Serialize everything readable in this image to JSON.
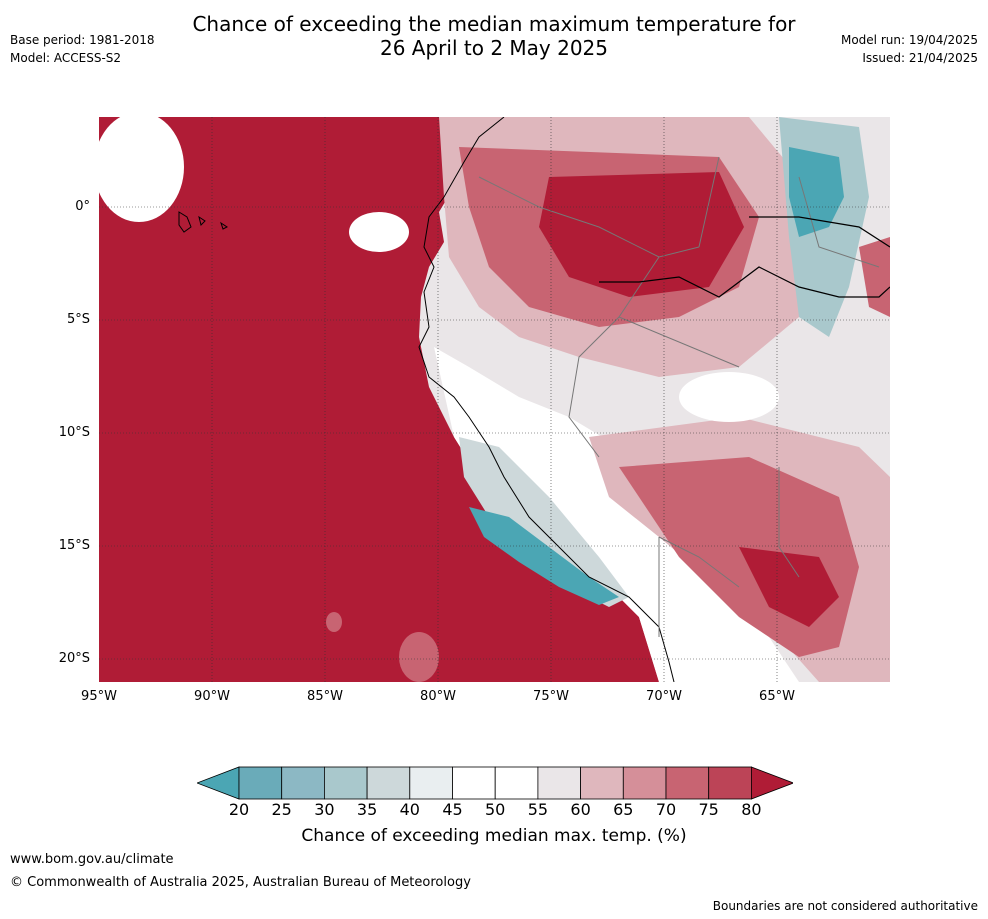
{
  "header": {
    "base_period": "Base period: 1981-2018",
    "model": "Model: ACCESS-S2",
    "title_line1": "Chance of exceeding the median maximum temperature for",
    "title_line2": "26 April to 2 May 2025",
    "model_run": "Model run: 19/04/2025",
    "issued": "Issued: 21/04/2025"
  },
  "map": {
    "lat_labels": [
      "0°",
      "5°S",
      "10°S",
      "15°S",
      "20°S"
    ],
    "lon_labels": [
      "95°W",
      "90°W",
      "85°W",
      "80°W",
      "75°W",
      "70°W",
      "65°W"
    ]
  },
  "legend": {
    "ticks": [
      "20",
      "25",
      "30",
      "35",
      "40",
      "45",
      "50",
      "55",
      "60",
      "65",
      "70",
      "75",
      "80"
    ],
    "colors": [
      "#4ba6b4",
      "#6aabb9",
      "#8cb8c4",
      "#a9c8cc",
      "#cdd8da",
      "#e9eef0",
      "#ffffff",
      "#ffffff",
      "#eae6e8",
      "#dfb7bd",
      "#d58f99",
      "#c86472",
      "#bc4457",
      "#b01c36"
    ],
    "title": "Chance of exceeding median max. temp. (%)"
  },
  "footer": {
    "url": "www.bom.gov.au/climate",
    "copyright": "© Commonwealth of Australia 2025, Australian Bureau of Meteorology",
    "disclaimer": "Boundaries are not considered authoritative"
  }
}
